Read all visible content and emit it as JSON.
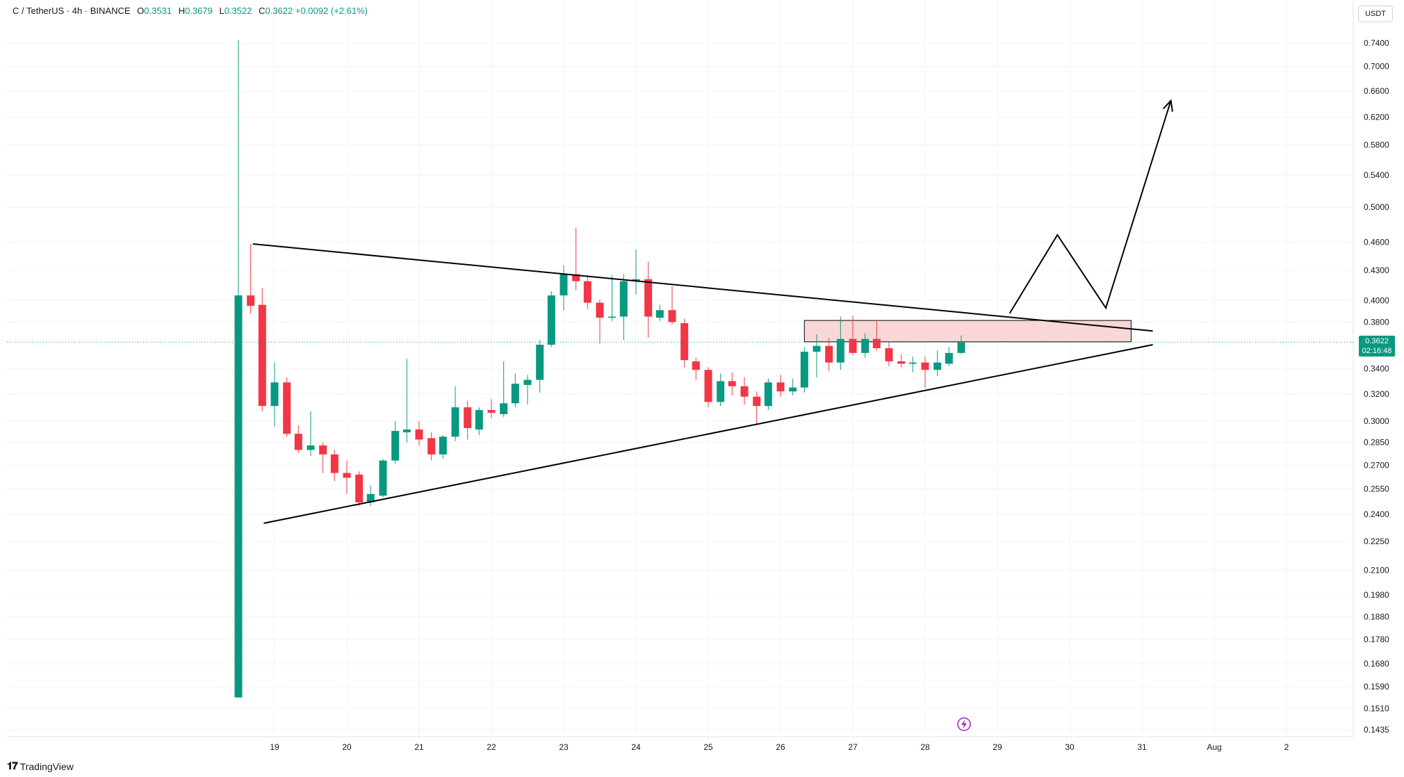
{
  "header": {
    "symbol": "C / TetherUS · 4h · BINANCE",
    "o_label": "O",
    "o_value": "0.3531",
    "h_label": "H",
    "h_value": "0.3679",
    "l_label": "L",
    "l_value": "0.3522",
    "c_label": "C",
    "c_value": "0.3622",
    "change": "+0.0092 (+2.61%)"
  },
  "currency": "USDT",
  "brand": "TradingView",
  "last_price": "0.3622",
  "countdown": "02:16:48",
  "colors": {
    "up": "#089981",
    "down": "#f23645",
    "zone": "#f7c9c9",
    "line": "#000000"
  },
  "chart_data": {
    "type": "candlestick",
    "y_scale": "log",
    "ylim": [
      0.1435,
      0.75
    ],
    "y_ticks": [
      "0.7400",
      "0.7000",
      "0.6600",
      "0.6200",
      "0.5800",
      "0.5400",
      "0.5000",
      "0.4600",
      "0.4300",
      "0.4000",
      "0.3800",
      "0.3400",
      "0.3200",
      "0.3000",
      "0.2850",
      "0.2700",
      "0.2550",
      "0.2400",
      "0.2250",
      "0.2100",
      "0.1980",
      "0.1880",
      "0.1780",
      "0.1680",
      "0.1590",
      "0.1510",
      "0.1435"
    ],
    "x_ticks": [
      {
        "label": "19",
        "day": 19
      },
      {
        "label": "20",
        "day": 20
      },
      {
        "label": "21",
        "day": 21
      },
      {
        "label": "22",
        "day": 22
      },
      {
        "label": "23",
        "day": 23
      },
      {
        "label": "24",
        "day": 24
      },
      {
        "label": "25",
        "day": 25
      },
      {
        "label": "26",
        "day": 26
      },
      {
        "label": "27",
        "day": 27
      },
      {
        "label": "28",
        "day": 28
      },
      {
        "label": "29",
        "day": 29
      },
      {
        "label": "30",
        "day": 30
      },
      {
        "label": "31",
        "day": 31
      },
      {
        "label": "Aug",
        "day": 32
      },
      {
        "label": "2",
        "day": 33
      }
    ],
    "candles": [
      {
        "t": 18.5,
        "o": 0.155,
        "h": 0.745,
        "l": 0.155,
        "c": 0.405
      },
      {
        "t": 18.67,
        "o": 0.405,
        "h": 0.458,
        "l": 0.388,
        "c": 0.395
      },
      {
        "t": 18.83,
        "o": 0.396,
        "h": 0.412,
        "l": 0.307,
        "c": 0.311
      },
      {
        "t": 19.0,
        "o": 0.311,
        "h": 0.345,
        "l": 0.296,
        "c": 0.329
      },
      {
        "t": 19.17,
        "o": 0.329,
        "h": 0.333,
        "l": 0.289,
        "c": 0.291
      },
      {
        "t": 19.33,
        "o": 0.291,
        "h": 0.297,
        "l": 0.278,
        "c": 0.28
      },
      {
        "t": 19.5,
        "o": 0.28,
        "h": 0.307,
        "l": 0.276,
        "c": 0.283
      },
      {
        "t": 19.67,
        "o": 0.283,
        "h": 0.285,
        "l": 0.265,
        "c": 0.277
      },
      {
        "t": 19.83,
        "o": 0.277,
        "h": 0.28,
        "l": 0.26,
        "c": 0.265
      },
      {
        "t": 20.0,
        "o": 0.265,
        "h": 0.273,
        "l": 0.252,
        "c": 0.262
      },
      {
        "t": 20.17,
        "o": 0.264,
        "h": 0.266,
        "l": 0.245,
        "c": 0.247
      },
      {
        "t": 20.33,
        "o": 0.247,
        "h": 0.257,
        "l": 0.245,
        "c": 0.252
      },
      {
        "t": 20.5,
        "o": 0.251,
        "h": 0.274,
        "l": 0.25,
        "c": 0.273
      },
      {
        "t": 20.67,
        "o": 0.273,
        "h": 0.3,
        "l": 0.271,
        "c": 0.293
      },
      {
        "t": 20.83,
        "o": 0.292,
        "h": 0.348,
        "l": 0.285,
        "c": 0.294
      },
      {
        "t": 21.0,
        "o": 0.294,
        "h": 0.3,
        "l": 0.283,
        "c": 0.287
      },
      {
        "t": 21.17,
        "o": 0.288,
        "h": 0.292,
        "l": 0.273,
        "c": 0.277
      },
      {
        "t": 21.33,
        "o": 0.277,
        "h": 0.29,
        "l": 0.274,
        "c": 0.289
      },
      {
        "t": 21.5,
        "o": 0.289,
        "h": 0.326,
        "l": 0.286,
        "c": 0.31
      },
      {
        "t": 21.67,
        "o": 0.31,
        "h": 0.315,
        "l": 0.287,
        "c": 0.295
      },
      {
        "t": 21.83,
        "o": 0.294,
        "h": 0.31,
        "l": 0.29,
        "c": 0.308
      },
      {
        "t": 22.0,
        "o": 0.308,
        "h": 0.316,
        "l": 0.302,
        "c": 0.306
      },
      {
        "t": 22.17,
        "o": 0.305,
        "h": 0.346,
        "l": 0.303,
        "c": 0.313
      },
      {
        "t": 22.33,
        "o": 0.313,
        "h": 0.336,
        "l": 0.31,
        "c": 0.328
      },
      {
        "t": 22.5,
        "o": 0.327,
        "h": 0.335,
        "l": 0.312,
        "c": 0.331
      },
      {
        "t": 22.67,
        "o": 0.331,
        "h": 0.364,
        "l": 0.321,
        "c": 0.36
      },
      {
        "t": 22.83,
        "o": 0.36,
        "h": 0.409,
        "l": 0.358,
        "c": 0.405
      },
      {
        "t": 23.0,
        "o": 0.405,
        "h": 0.435,
        "l": 0.391,
        "c": 0.426
      },
      {
        "t": 23.17,
        "o": 0.426,
        "h": 0.476,
        "l": 0.41,
        "c": 0.419
      },
      {
        "t": 23.33,
        "o": 0.419,
        "h": 0.425,
        "l": 0.392,
        "c": 0.398
      },
      {
        "t": 23.5,
        "o": 0.398,
        "h": 0.401,
        "l": 0.361,
        "c": 0.384
      },
      {
        "t": 23.67,
        "o": 0.384,
        "h": 0.425,
        "l": 0.381,
        "c": 0.385
      },
      {
        "t": 23.83,
        "o": 0.385,
        "h": 0.426,
        "l": 0.364,
        "c": 0.419
      },
      {
        "t": 24.0,
        "o": 0.419,
        "h": 0.452,
        "l": 0.406,
        "c": 0.421
      },
      {
        "t": 24.17,
        "o": 0.421,
        "h": 0.439,
        "l": 0.366,
        "c": 0.385
      },
      {
        "t": 24.33,
        "o": 0.384,
        "h": 0.396,
        "l": 0.381,
        "c": 0.391
      },
      {
        "t": 24.5,
        "o": 0.391,
        "h": 0.414,
        "l": 0.378,
        "c": 0.38
      },
      {
        "t": 24.67,
        "o": 0.379,
        "h": 0.383,
        "l": 0.341,
        "c": 0.347
      },
      {
        "t": 24.83,
        "o": 0.346,
        "h": 0.349,
        "l": 0.331,
        "c": 0.339
      },
      {
        "t": 25.0,
        "o": 0.339,
        "h": 0.341,
        "l": 0.31,
        "c": 0.314
      },
      {
        "t": 25.17,
        "o": 0.314,
        "h": 0.336,
        "l": 0.311,
        "c": 0.33
      },
      {
        "t": 25.33,
        "o": 0.33,
        "h": 0.337,
        "l": 0.319,
        "c": 0.326
      },
      {
        "t": 25.5,
        "o": 0.326,
        "h": 0.333,
        "l": 0.312,
        "c": 0.318
      },
      {
        "t": 25.67,
        "o": 0.318,
        "h": 0.322,
        "l": 0.297,
        "c": 0.311
      },
      {
        "t": 25.83,
        "o": 0.311,
        "h": 0.332,
        "l": 0.308,
        "c": 0.329
      },
      {
        "t": 26.0,
        "o": 0.329,
        "h": 0.335,
        "l": 0.318,
        "c": 0.322
      },
      {
        "t": 26.17,
        "o": 0.322,
        "h": 0.332,
        "l": 0.319,
        "c": 0.325
      },
      {
        "t": 26.33,
        "o": 0.325,
        "h": 0.358,
        "l": 0.321,
        "c": 0.354
      },
      {
        "t": 26.5,
        "o": 0.354,
        "h": 0.369,
        "l": 0.333,
        "c": 0.359
      },
      {
        "t": 26.67,
        "o": 0.359,
        "h": 0.366,
        "l": 0.338,
        "c": 0.345
      },
      {
        "t": 26.83,
        "o": 0.345,
        "h": 0.385,
        "l": 0.339,
        "c": 0.365
      },
      {
        "t": 27.0,
        "o": 0.365,
        "h": 0.386,
        "l": 0.351,
        "c": 0.353
      },
      {
        "t": 27.17,
        "o": 0.353,
        "h": 0.37,
        "l": 0.349,
        "c": 0.365
      },
      {
        "t": 27.33,
        "o": 0.365,
        "h": 0.382,
        "l": 0.355,
        "c": 0.357
      },
      {
        "t": 27.5,
        "o": 0.357,
        "h": 0.362,
        "l": 0.342,
        "c": 0.346
      },
      {
        "t": 27.67,
        "o": 0.346,
        "h": 0.352,
        "l": 0.341,
        "c": 0.344
      },
      {
        "t": 27.83,
        "o": 0.344,
        "h": 0.35,
        "l": 0.337,
        "c": 0.345
      },
      {
        "t": 28.0,
        "o": 0.345,
        "h": 0.35,
        "l": 0.325,
        "c": 0.339
      },
      {
        "t": 28.17,
        "o": 0.339,
        "h": 0.355,
        "l": 0.334,
        "c": 0.345
      },
      {
        "t": 28.33,
        "o": 0.344,
        "h": 0.358,
        "l": 0.342,
        "c": 0.353
      },
      {
        "t": 28.5,
        "o": 0.353,
        "h": 0.368,
        "l": 0.352,
        "c": 0.362
      }
    ],
    "trendlines": [
      {
        "name": "upper",
        "from": {
          "t": 18.7,
          "p": 0.458
        },
        "to": {
          "t": 31.15,
          "p": 0.372
        }
      },
      {
        "name": "lower",
        "from": {
          "t": 18.85,
          "p": 0.235
        },
        "to": {
          "t": 31.15,
          "p": 0.36
        }
      }
    ],
    "zone": {
      "t1": 26.33,
      "t2": 30.85,
      "p_low": 0.3625,
      "p_high": 0.3815
    },
    "projection": [
      {
        "t": 29.17,
        "p": 0.388
      },
      {
        "t": 29.83,
        "p": 0.468
      },
      {
        "t": 30.5,
        "p": 0.393
      },
      {
        "t": 31.4,
        "p": 0.645
      }
    ],
    "current_price": 0.3622
  }
}
